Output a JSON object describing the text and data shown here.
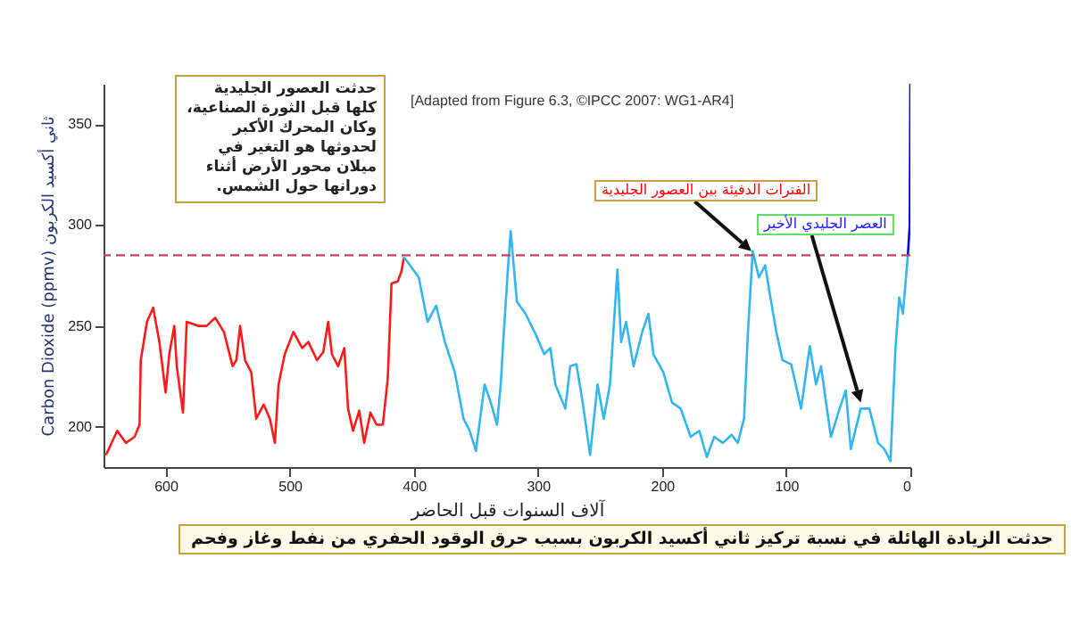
{
  "chart_data": {
    "type": "line",
    "xlabel": "آلاف السنوات قبل الحاضر",
    "ylabel": "Carbon Dioxide (ppmv) ثاني أكسيد الكربون",
    "xlim": [
      650,
      0
    ],
    "xticks": [
      600,
      500,
      400,
      300,
      200,
      100,
      0
    ],
    "ylim": [
      180,
      370
    ],
    "yticks": [
      200,
      250,
      300,
      350
    ],
    "series": [
      {
        "color": "#ff1a1a",
        "x": [
          648,
          639,
          632,
          625,
          621,
          620,
          615,
          610,
          605,
          600,
          597,
          593,
          591,
          586,
          583,
          574,
          567,
          560,
          553,
          546,
          543,
          540,
          536,
          531,
          527,
          521,
          516,
          512,
          509,
          504,
          497,
          490,
          485,
          478,
          473,
          469,
          466,
          461,
          456,
          453,
          449,
          444,
          440,
          435,
          430,
          425,
          421,
          418,
          413,
          410,
          408
        ],
        "values": [
          186,
          198,
          192,
          195,
          201,
          233,
          252,
          259,
          242,
          217,
          236,
          250,
          230,
          207,
          252,
          250,
          250,
          254,
          247,
          230,
          233,
          250,
          233,
          227,
          204,
          211,
          204,
          192,
          221,
          236,
          247,
          239,
          242,
          233,
          237,
          252,
          236,
          230,
          239,
          209,
          198,
          208,
          192,
          207,
          201,
          201,
          224,
          271,
          272,
          277,
          284
        ]
      },
      {
        "color": "#33b5f0",
        "x": [
          408,
          403,
          396,
          389,
          382,
          375,
          367,
          360,
          355,
          350,
          343,
          338,
          333,
          330,
          328,
          324,
          322,
          317,
          310,
          302,
          295,
          290,
          286,
          278,
          274,
          269,
          264,
          258,
          252,
          247,
          242,
          236,
          233,
          229,
          223,
          216,
          211,
          207,
          199,
          192,
          185,
          177,
          170,
          164,
          158,
          151,
          144,
          139,
          134,
          131,
          127,
          122,
          117,
          113,
          108,
          103,
          96,
          88,
          81,
          76,
          72,
          64,
          57,
          52,
          48,
          40,
          33,
          26,
          21,
          16,
          12,
          9,
          6,
          2
        ],
        "values": [
          284,
          280,
          274,
          252,
          260,
          242,
          227,
          204,
          198,
          188,
          221,
          212,
          201,
          221,
          242,
          280,
          297,
          262,
          256,
          246,
          236,
          239,
          221,
          209,
          230,
          231,
          212,
          186,
          221,
          204,
          221,
          278,
          242,
          252,
          230,
          247,
          256,
          236,
          227,
          212,
          209,
          195,
          198,
          185,
          195,
          192,
          196,
          192,
          204,
          245,
          287,
          274,
          280,
          265,
          247,
          233,
          231,
          209,
          240,
          221,
          230,
          195,
          209,
          218,
          189,
          209,
          209,
          192,
          189,
          183,
          239,
          264,
          256,
          285
        ]
      },
      {
        "color": "#0000ff",
        "x": [
          2,
          0.5,
          0
        ],
        "values": [
          285,
          300,
          370
        ]
      }
    ],
    "ref_lines": [
      {
        "axis": "y",
        "value": 285,
        "color": "#c0405a",
        "line_style": "dashed"
      }
    ],
    "annotations": [
      "حدثت العصور الجليدية كلها قبل الثورة الصناعية، وكان المحرك الأكبر لحدوثها هو التغير في ميلان محور الأرض أثناء دورانها حول الشمس.",
      {
        "text": "الفترات الدفيئة بين العصور الجليدية",
        "x": 128,
        "y": 287
      },
      {
        "text": "العصر الجليدي الأخير",
        "x": 40,
        "y": 212
      },
      "[Adapted from Figure 6.3, ©IPCC 2007: WG1-AR4]",
      "حدثت الزيادة الهائلة في نسبة تركيز ثاني أكسيد الكربون بسبب حرق الوقود الحفري من نفط وغاز وفحم"
    ]
  }
}
